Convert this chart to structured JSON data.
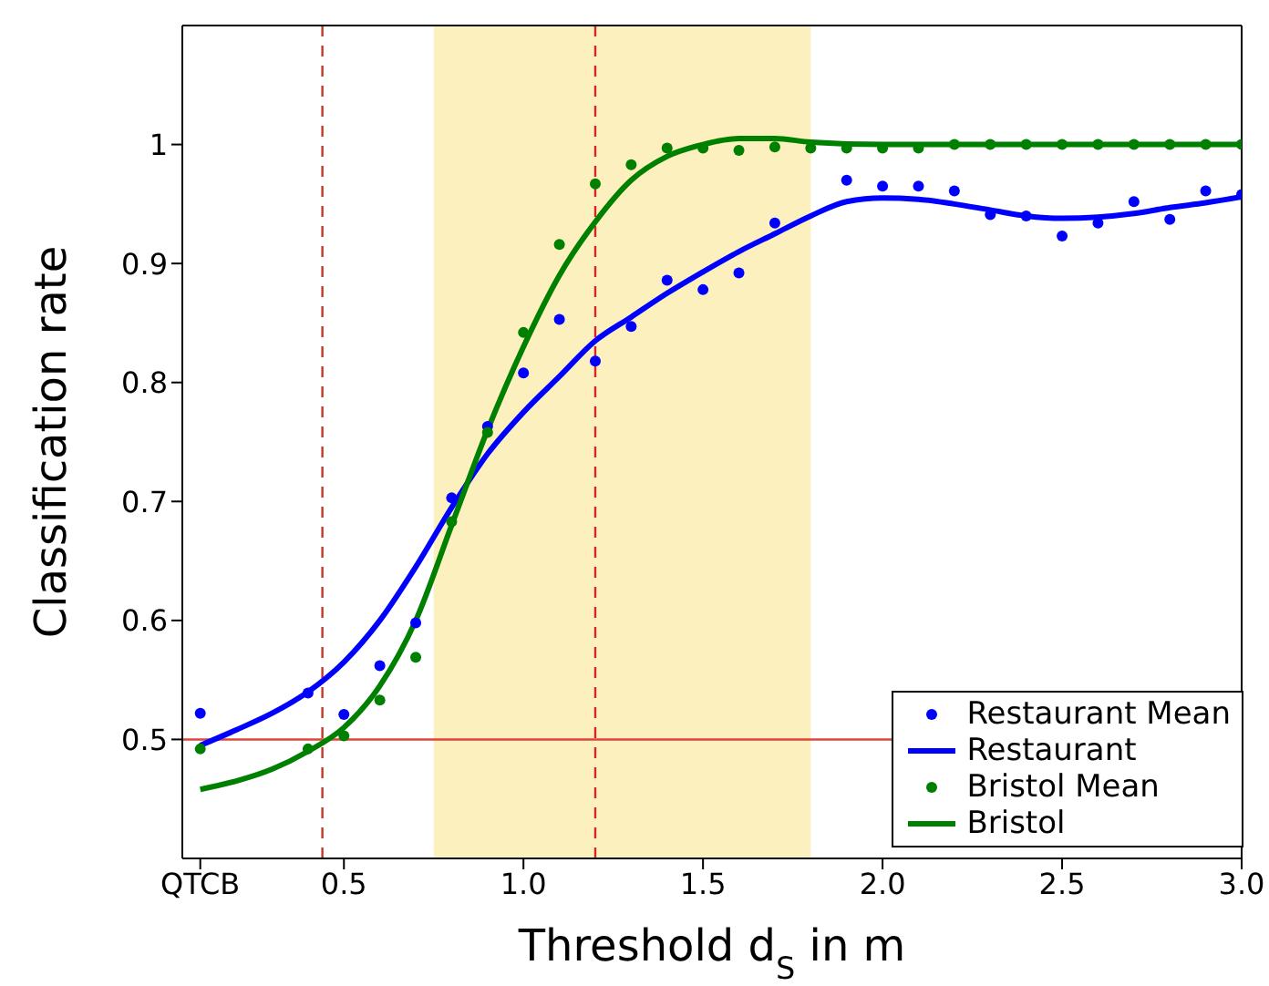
{
  "chart_data": {
    "type": "line",
    "xlabel": "Threshold d$_{S}$ in m",
    "ylabel": "Classification rate",
    "xlim": [
      0.05,
      3.0
    ],
    "ylim": [
      0.4,
      1.1
    ],
    "xticks": [
      {
        "value": 0.1,
        "label": "QTCB"
      },
      0.5,
      {
        "value": 1,
        "label": "1.0"
      },
      1.5,
      {
        "value": 2,
        "label": "2.0"
      },
      2.5,
      {
        "value": 3,
        "label": "3.0"
      }
    ],
    "yticks": [
      0.5,
      0.6,
      0.7,
      0.8,
      0.9,
      1
    ],
    "grid": false,
    "legend": "bottom right",
    "ref_lines": [
      {
        "axis": "x",
        "value": 0.44,
        "color": "#c0392b",
        "line_style": "dashed"
      },
      {
        "axis": "x",
        "value": 1.2,
        "color": "#d62728",
        "line_style": "dashed"
      },
      {
        "axis": "y",
        "value": 0.5,
        "color": "#e0453c",
        "line_style": "solid"
      }
    ],
    "bands": [
      {
        "axis": "x",
        "from": 0.75,
        "to": 1.8,
        "color": "#fdf0bf"
      }
    ],
    "series": [
      {
        "name": "Restaurant Mean",
        "type": "scatter",
        "marker": "circle",
        "color": "#0000ff",
        "x": [
          0.1,
          0.4,
          0.5,
          0.6,
          0.7,
          0.8,
          0.9,
          1.0,
          1.1,
          1.2,
          1.3,
          1.4,
          1.5,
          1.6,
          1.7,
          1.9,
          2.0,
          2.1,
          2.2,
          2.3,
          2.4,
          2.5,
          2.6,
          2.7,
          2.8,
          2.9,
          3.0
        ],
        "values": [
          0.522,
          0.539,
          0.521,
          0.562,
          0.598,
          0.703,
          0.763,
          0.808,
          0.853,
          0.818,
          0.847,
          0.886,
          0.878,
          0.892,
          0.934,
          0.97,
          0.965,
          0.965,
          0.961,
          0.941,
          0.94,
          0.923,
          0.934,
          0.952,
          0.937,
          0.961,
          0.958
        ]
      },
      {
        "name": "Restaurant",
        "marker": "none",
        "line_style": "solid",
        "color": "#0000ff",
        "x": [
          0.1,
          0.2,
          0.3,
          0.4,
          0.5,
          0.6,
          0.7,
          0.8,
          0.9,
          1.0,
          1.1,
          1.2,
          1.3,
          1.4,
          1.5,
          1.6,
          1.7,
          1.8,
          1.9,
          2.0,
          2.1,
          2.2,
          2.3,
          2.4,
          2.5,
          2.6,
          2.7,
          2.8,
          2.9,
          3.0
        ],
        "values": [
          0.495,
          0.508,
          0.522,
          0.54,
          0.565,
          0.6,
          0.645,
          0.695,
          0.74,
          0.775,
          0.805,
          0.835,
          0.855,
          0.875,
          0.893,
          0.91,
          0.925,
          0.94,
          0.952,
          0.955,
          0.954,
          0.95,
          0.945,
          0.94,
          0.938,
          0.939,
          0.942,
          0.947,
          0.951,
          0.956
        ]
      },
      {
        "name": "Bristol Mean",
        "type": "scatter",
        "marker": "circle",
        "color": "#008000",
        "x": [
          0.1,
          0.4,
          0.5,
          0.6,
          0.7,
          0.8,
          0.9,
          1.0,
          1.1,
          1.2,
          1.3,
          1.4,
          1.5,
          1.6,
          1.7,
          1.8,
          1.9,
          2.0,
          2.1,
          2.2,
          2.3,
          2.4,
          2.5,
          2.6,
          2.7,
          2.8,
          2.9,
          3.0
        ],
        "values": [
          0.492,
          0.492,
          0.503,
          0.533,
          0.569,
          0.683,
          0.758,
          0.842,
          0.916,
          0.967,
          0.983,
          0.997,
          0.997,
          0.995,
          0.998,
          0.997,
          0.997,
          0.997,
          0.997,
          1.0,
          1.0,
          1.0,
          1.0,
          1.0,
          1.0,
          1.0,
          1.0,
          1.0
        ]
      },
      {
        "name": "Bristol",
        "marker": "none",
        "line_style": "solid",
        "color": "#008000",
        "x": [
          0.1,
          0.2,
          0.3,
          0.4,
          0.5,
          0.6,
          0.7,
          0.8,
          0.9,
          1.0,
          1.1,
          1.2,
          1.3,
          1.4,
          1.5,
          1.6,
          1.7,
          1.8,
          2.0,
          2.5,
          3.0
        ],
        "values": [
          0.458,
          0.465,
          0.475,
          0.49,
          0.51,
          0.545,
          0.6,
          0.68,
          0.76,
          0.83,
          0.89,
          0.935,
          0.97,
          0.99,
          1.0,
          1.005,
          1.005,
          1.002,
          1.0,
          1.0,
          1.0
        ]
      }
    ]
  }
}
